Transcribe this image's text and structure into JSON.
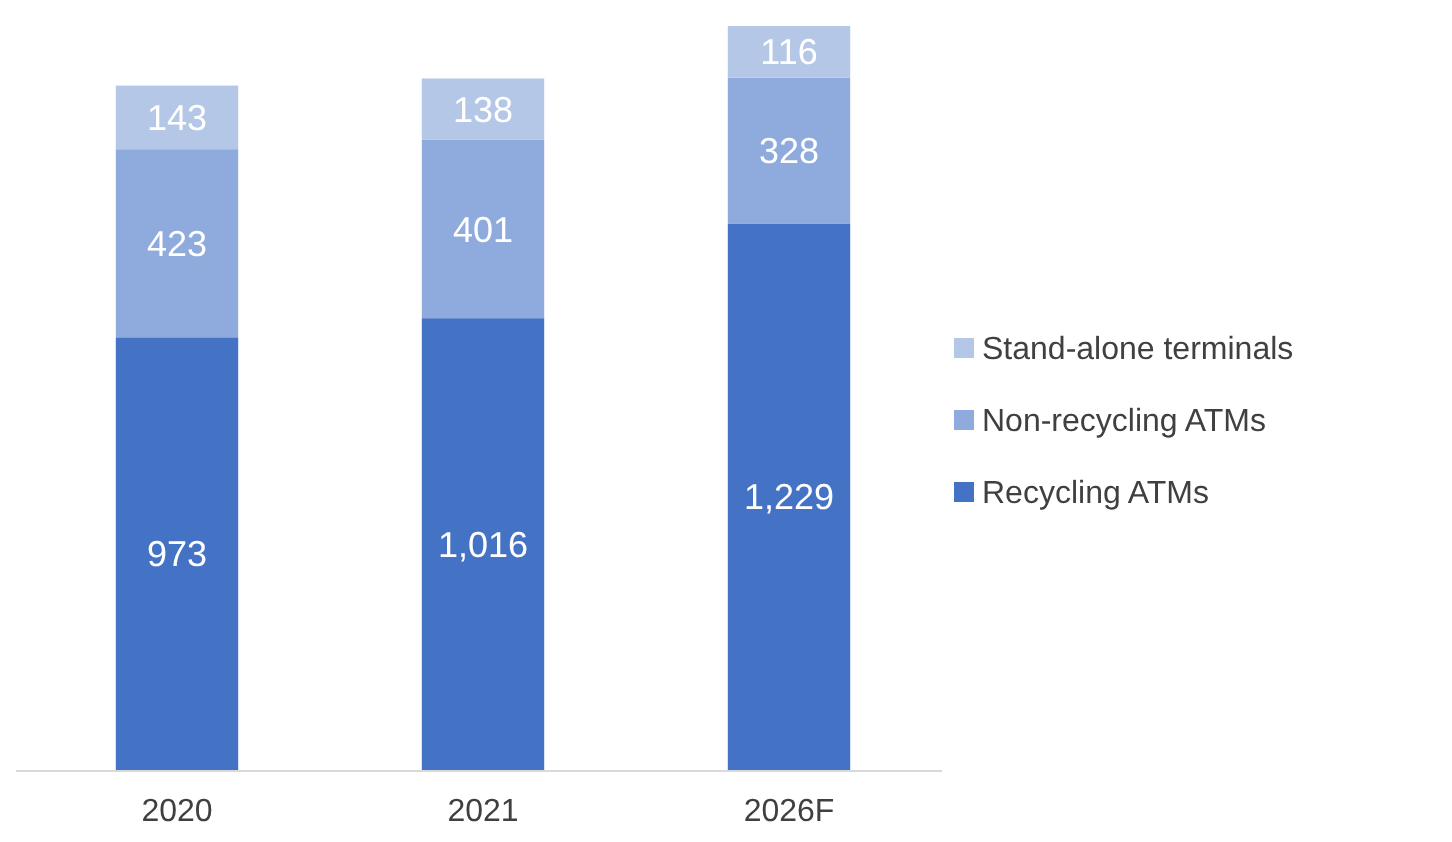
{
  "chart_data": {
    "type": "bar",
    "stacked": true,
    "legend": "right",
    "categories": [
      "2020",
      "2021",
      "2026F"
    ],
    "series": [
      {
        "name": "Recycling ATMs",
        "color": "#4472c4",
        "values": [
          973,
          1016,
          1229
        ],
        "value_labels": [
          "973",
          "1,016",
          "1,229"
        ]
      },
      {
        "name": "Non-recycling ATMs",
        "color": "#8faadc",
        "values": [
          423,
          401,
          328
        ],
        "value_labels": [
          "423",
          "401",
          "328"
        ]
      },
      {
        "name": "Stand-alone terminals",
        "color": "#b4c7e7",
        "values": [
          143,
          138,
          116
        ],
        "value_labels": [
          "143",
          "138",
          "116"
        ]
      }
    ]
  }
}
